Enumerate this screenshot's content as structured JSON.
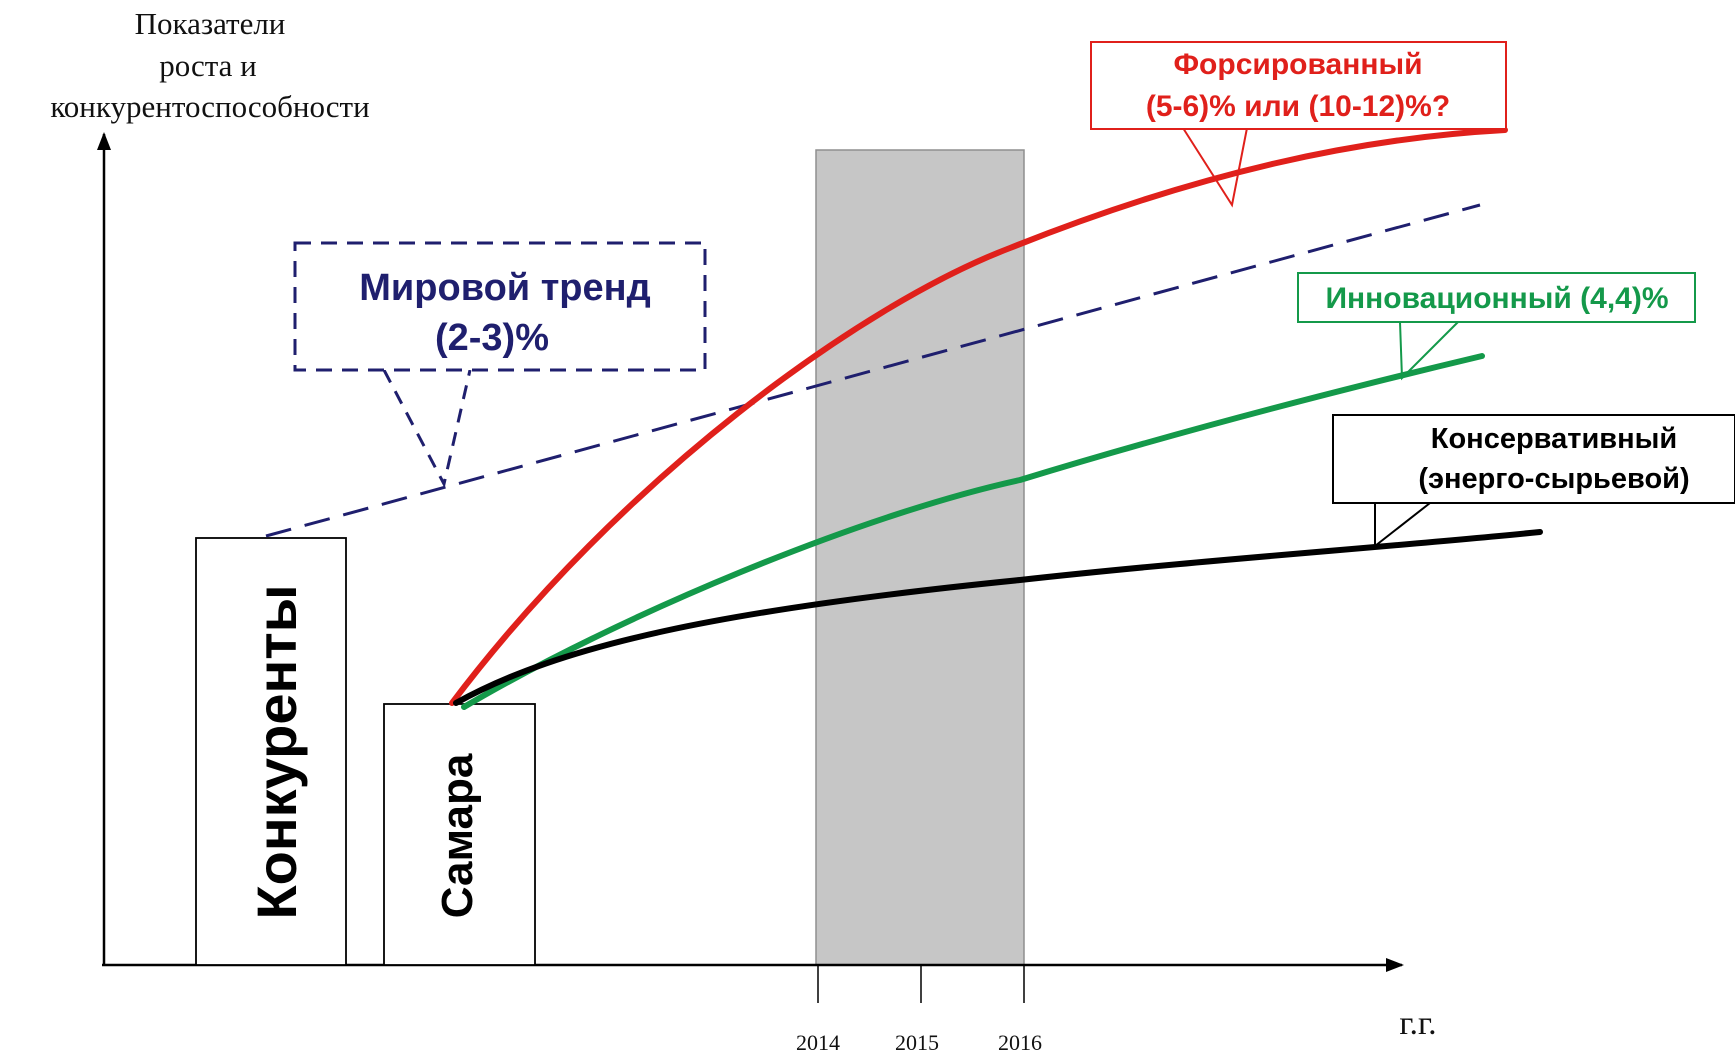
{
  "chart_data": {
    "type": "line",
    "ylabel_lines": [
      "Показатели",
      "роста  и",
      "конкурентоспособности"
    ],
    "xlabel": "г.г.",
    "x_ticks": [
      "2014",
      "2015",
      "2016"
    ],
    "highlight_period": [
      "2014",
      "2016"
    ],
    "bars": [
      {
        "name": "Конкуренты",
        "level": 1.0
      },
      {
        "name": "Самара",
        "level": 0.61
      }
    ],
    "series": [
      {
        "name": "Мировой тренд (2-3)%",
        "label_lines": [
          "Мировой тренд",
          "(2-3)%"
        ],
        "style": "dashed",
        "color": "#1f1f6e",
        "start_from": "Конкуренты"
      },
      {
        "name": "Форсированный (5-6)% или (10-12)%?",
        "label_lines": [
          "Форсированный",
          "(5-6)% или (10-12)%?"
        ],
        "style": "solid",
        "color": "#e0201b",
        "start_from": "Самара"
      },
      {
        "name": "Инновационный (4,4)%",
        "label_lines": [
          "Инновационный (4,4)%"
        ],
        "style": "solid",
        "color": "#14994a",
        "start_from": "Самара"
      },
      {
        "name": "Консервативный (энерго-сырьевой)",
        "label_lines": [
          "Консервативный",
          "(энерго-сырьевой)"
        ],
        "style": "solid",
        "color": "#000000",
        "start_from": "Самара"
      }
    ]
  }
}
